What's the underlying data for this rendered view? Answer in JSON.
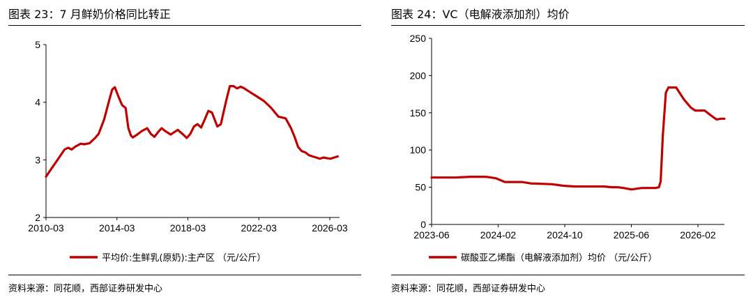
{
  "charts": {
    "left": {
      "title": "图表 23：7 月鲜奶价格同比转正",
      "source": "资料来源：同花顺，西部证券研发中心",
      "chart_data": {
        "type": "line",
        "title": "图表 23：7 月鲜奶价格同比转正",
        "xlabel": "",
        "ylabel": "",
        "ylim": [
          2,
          5
        ],
        "yticks": [
          "2",
          "3",
          "4",
          "5"
        ],
        "xticks": [
          "2010-03",
          "2014-03",
          "2018-03",
          "2022-03",
          "2026-03"
        ],
        "xlim": [
          2010.17,
          2026.5
        ],
        "legend_position": "bottom",
        "grid": false,
        "series": [
          {
            "name": "平均价:生鲜乳(原奶):主产区 （元/公斤）",
            "color": "#c00000",
            "x": [
              2010.17,
              2010.5,
              2010.9,
              2011.2,
              2011.4,
              2011.6,
              2011.8,
              2012.1,
              2012.3,
              2012.6,
              2012.9,
              2013.1,
              2013.4,
              2013.7,
              2013.85,
              2014.0,
              2014.2,
              2014.4,
              2014.6,
              2014.75,
              2014.9,
              2015.0,
              2015.2,
              2015.5,
              2015.8,
              2016.0,
              2016.2,
              2016.4,
              2016.6,
              2016.8,
              2017.1,
              2017.3,
              2017.5,
              2017.8,
              2018.0,
              2018.2,
              2018.4,
              2018.6,
              2018.8,
              2019.0,
              2019.2,
              2019.4,
              2019.7,
              2019.9,
              2020.1,
              2020.25,
              2020.4,
              2020.6,
              2020.8,
              2021.0,
              2021.2,
              2021.3,
              2021.5,
              2021.7,
              2021.9,
              2022.3,
              2022.7,
              2023.1,
              2023.5,
              2023.8,
              2024.0,
              2024.2,
              2024.4,
              2024.6,
              2024.8,
              2025.0,
              2025.2,
              2025.4,
              2025.6,
              2025.8,
              2026.0,
              2026.2,
              2026.4
            ],
            "y": [
              2.71,
              2.86,
              3.04,
              3.18,
              3.21,
              3.18,
              3.23,
              3.28,
              3.27,
              3.29,
              3.38,
              3.45,
              3.7,
              4.05,
              4.22,
              4.26,
              4.1,
              3.95,
              3.9,
              3.55,
              3.42,
              3.39,
              3.43,
              3.5,
              3.55,
              3.45,
              3.4,
              3.48,
              3.55,
              3.5,
              3.44,
              3.48,
              3.52,
              3.44,
              3.38,
              3.45,
              3.58,
              3.62,
              3.56,
              3.7,
              3.85,
              3.82,
              3.58,
              3.62,
              3.9,
              4.1,
              4.28,
              4.28,
              4.24,
              4.27,
              4.24,
              4.22,
              4.18,
              4.14,
              4.1,
              4.02,
              3.9,
              3.75,
              3.72,
              3.55,
              3.4,
              3.22,
              3.15,
              3.13,
              3.08,
              3.06,
              3.04,
              3.02,
              3.04,
              3.03,
              3.02,
              3.04,
              3.06
            ]
          }
        ]
      }
    },
    "right": {
      "title": "图表 24：VC（电解液添加剂）均价",
      "source": "资料来源：同花顺，西部证券研发中心",
      "chart_data": {
        "type": "line",
        "title": "图表 24：VC（电解液添加剂）均价",
        "xlabel": "",
        "ylabel": "",
        "ylim": [
          0,
          250
        ],
        "yticks": [
          "0",
          "50",
          "100",
          "150",
          "200",
          "250"
        ],
        "xticks": [
          "2023-06",
          "2024-02",
          "2024-10",
          "2025-06",
          "2026-02"
        ],
        "xlim": [
          0,
          34
        ],
        "x_unit": "months since 2023-06",
        "legend_position": "bottom",
        "grid": false,
        "series": [
          {
            "name": "碳酸亚乙烯酯（电解液添加剂）均价 （元/公斤）",
            "color": "#c00000",
            "x": [
              0,
              2,
              2.8,
              4.5,
              5.2,
              6.3,
              7.5,
              8.5,
              10.5,
              11.6,
              12.0,
              14,
              15.3,
              16.6,
              20.0,
              20.9,
              21.6,
              22.3,
              23.2,
              24.4,
              26.0,
              26.4,
              26.6,
              26.85,
              27.2,
              27.5,
              28.4,
              28.9,
              29.3,
              30.1,
              30.6,
              31.2,
              31.7,
              32.6,
              33.1,
              33.6,
              34.0
            ],
            "y": [
              63,
              63,
              63,
              64,
              64,
              64,
              62,
              57,
              57,
              55,
              55,
              54,
              52,
              51,
              51,
              50,
              50,
              49,
              47,
              49,
              49,
              50,
              58,
              120,
              177,
              184,
              184,
              175,
              168,
              157,
              153,
              153,
              153,
              145,
              141,
              142,
              142
            ]
          }
        ]
      }
    }
  }
}
